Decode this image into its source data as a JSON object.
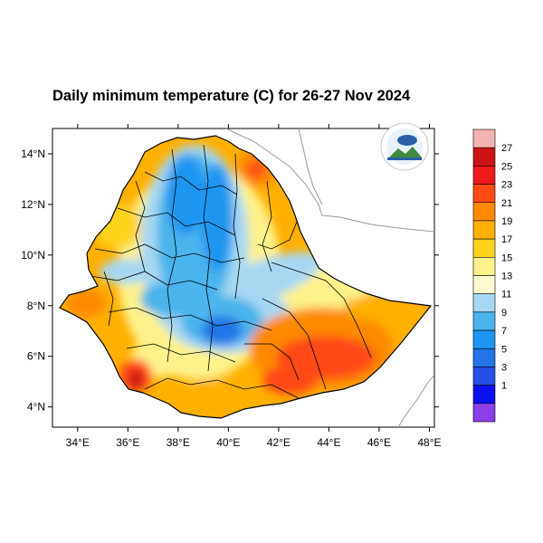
{
  "title": "Daily minimum temperature (C) for 26-27 Nov 2024",
  "x_axis": {
    "ticks": [
      "34°E",
      "36°E",
      "38°E",
      "40°E",
      "42°E",
      "44°E",
      "46°E",
      "48°E"
    ],
    "values": [
      34,
      36,
      38,
      40,
      42,
      44,
      46,
      48
    ],
    "range": [
      33,
      48.2
    ]
  },
  "y_axis": {
    "ticks": [
      "4°N",
      "6°N",
      "8°N",
      "10°N",
      "12°N",
      "14°N"
    ],
    "values": [
      4,
      6,
      8,
      10,
      12,
      14
    ],
    "range": [
      3.2,
      15
    ]
  },
  "colorbar": {
    "labels": [
      "27",
      "25",
      "23",
      "21",
      "19",
      "17",
      "15",
      "13",
      "11",
      "9",
      "7",
      "5",
      "3",
      "1"
    ],
    "colors": [
      "#f5b3b3",
      "#cc1414",
      "#ee1a1a",
      "#ff4a14",
      "#ff8a00",
      "#ffb000",
      "#ffd21e",
      "#fff28c",
      "#fffbcf",
      "#a6d8f2",
      "#4cb4ec",
      "#1e96f0",
      "#2374e6",
      "#2450e6",
      "#0a10f0",
      "#8a3fe8"
    ]
  },
  "logo": {
    "name": "ethiopian-meteorology-institute-logo"
  }
}
